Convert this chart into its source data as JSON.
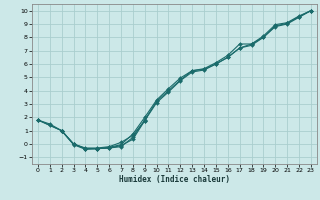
{
  "bg_color": "#cce8e8",
  "grid_color": "#aacece",
  "line_color": "#1a6b6b",
  "marker_color": "#1a6b6b",
  "xlabel": "Humidex (Indice chaleur)",
  "xlim": [
    -0.5,
    23.5
  ],
  "ylim": [
    -1.5,
    10.5
  ],
  "xticks": [
    0,
    1,
    2,
    3,
    4,
    5,
    6,
    7,
    8,
    9,
    10,
    11,
    12,
    13,
    14,
    15,
    16,
    17,
    18,
    19,
    20,
    21,
    22,
    23
  ],
  "yticks": [
    -1,
    0,
    1,
    2,
    3,
    4,
    5,
    6,
    7,
    8,
    9,
    10
  ],
  "line1_x": [
    0,
    1,
    2,
    3,
    4,
    5,
    6,
    7,
    8,
    9,
    10,
    11,
    12,
    13,
    14,
    15,
    16,
    17,
    18,
    19,
    20,
    21,
    22,
    23
  ],
  "line1_y": [
    1.8,
    1.5,
    1.0,
    0.0,
    -0.35,
    -0.35,
    -0.3,
    -0.2,
    0.5,
    1.8,
    3.2,
    4.0,
    4.8,
    5.5,
    5.6,
    6.0,
    6.5,
    7.2,
    7.4,
    8.0,
    8.8,
    9.0,
    9.5,
    10.0
  ],
  "line2_x": [
    0,
    1,
    2,
    3,
    4,
    5,
    6,
    7,
    8,
    9,
    10,
    11,
    12,
    13,
    14,
    15,
    16,
    17,
    18,
    19,
    20,
    21,
    22,
    23
  ],
  "line2_y": [
    1.8,
    1.4,
    1.0,
    -0.05,
    -0.4,
    -0.35,
    -0.25,
    -0.05,
    0.75,
    2.0,
    3.3,
    4.15,
    4.95,
    5.5,
    5.65,
    6.1,
    6.65,
    7.5,
    7.5,
    8.1,
    8.95,
    9.1,
    9.6,
    10.0
  ],
  "line3_x": [
    0,
    2,
    3,
    4,
    5,
    6,
    7,
    8,
    9,
    10,
    11,
    12,
    13,
    14,
    15,
    16,
    17,
    18,
    19,
    20,
    21,
    22,
    23
  ],
  "line3_y": [
    1.8,
    1.0,
    0.0,
    -0.35,
    -0.35,
    -0.3,
    -0.12,
    0.35,
    1.75,
    3.1,
    3.9,
    4.75,
    5.4,
    5.55,
    6.0,
    6.5,
    7.2,
    7.5,
    8.0,
    8.85,
    9.05,
    9.55,
    10.0
  ],
  "line4_x": [
    2,
    3,
    4,
    5,
    6,
    7,
    8,
    9
  ],
  "line4_y": [
    1.0,
    0.0,
    -0.3,
    -0.3,
    -0.2,
    0.12,
    0.65,
    1.75
  ]
}
